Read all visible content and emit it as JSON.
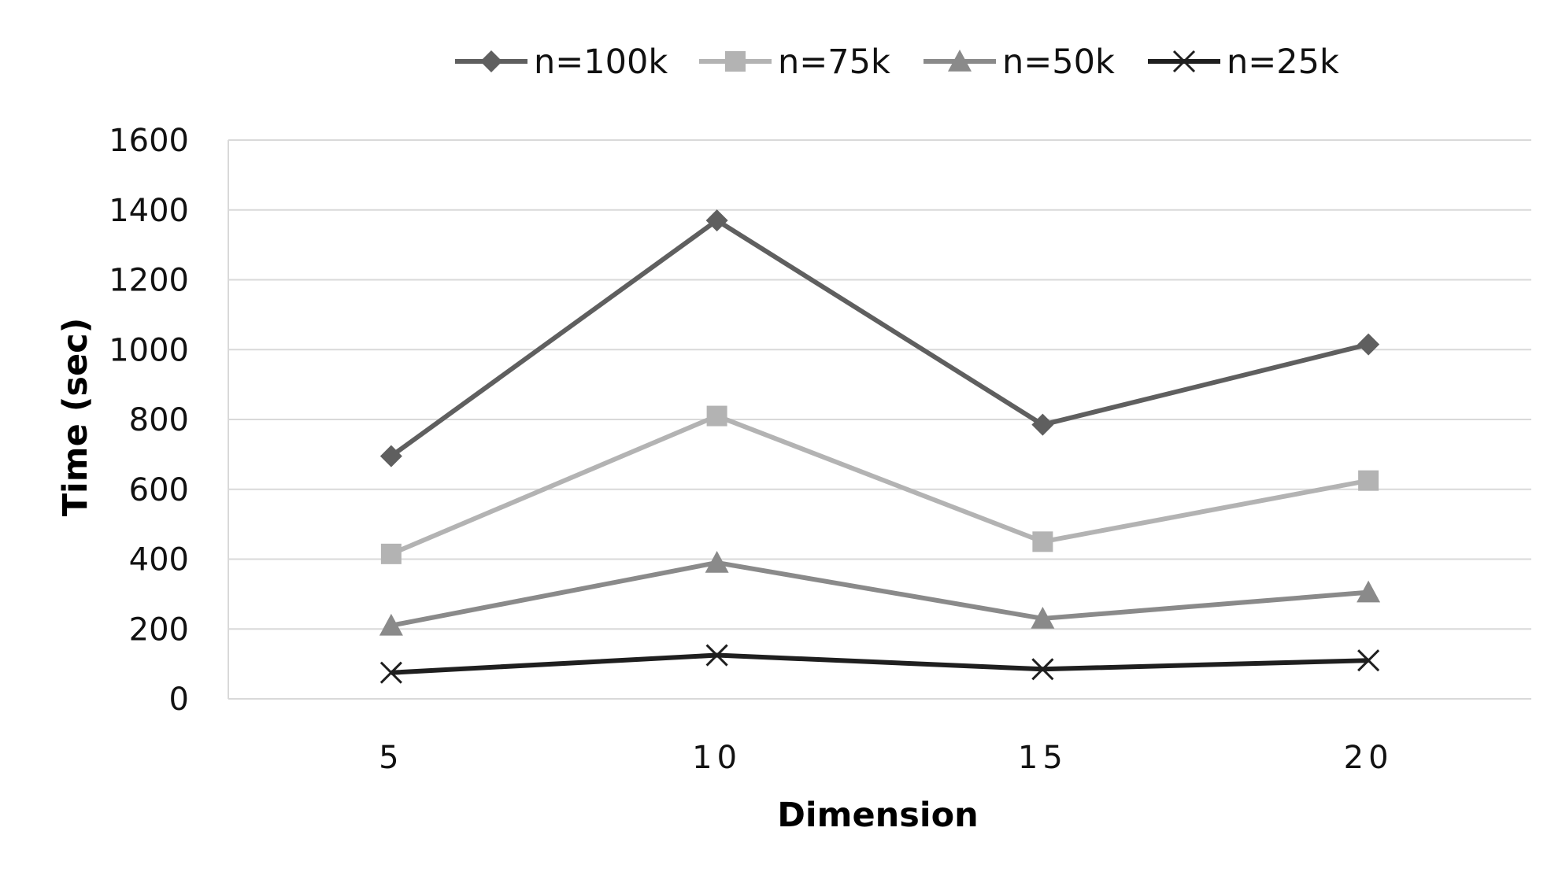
{
  "chart_data": {
    "type": "line",
    "x": [
      5,
      10,
      15,
      20
    ],
    "series": [
      {
        "name": "n=100k",
        "values": [
          695,
          1370,
          785,
          1015
        ],
        "color": "#5f5f5f",
        "marker": "diamond"
      },
      {
        "name": "n=75k",
        "values": [
          415,
          810,
          450,
          625
        ],
        "color": "#b3b3b3",
        "marker": "square"
      },
      {
        "name": "n=50k",
        "values": [
          210,
          390,
          230,
          305
        ],
        "color": "#8a8a8a",
        "marker": "triangle"
      },
      {
        "name": "n=25k",
        "values": [
          75,
          125,
          85,
          110
        ],
        "color": "#1f1f1f",
        "marker": "x"
      }
    ],
    "xlabel": "Dimension",
    "ylabel": "Time (sec)",
    "ylim": [
      0,
      1600
    ],
    "yticks": [
      0,
      200,
      400,
      600,
      800,
      1000,
      1200,
      1400,
      1600
    ],
    "grid": true,
    "legend_position": "top"
  }
}
